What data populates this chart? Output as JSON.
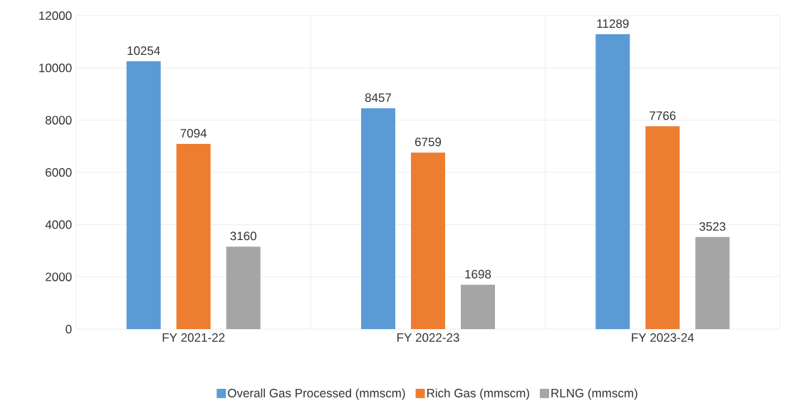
{
  "chart_data": {
    "type": "bar",
    "categories": [
      "FY 2021-22",
      "FY 2022-23",
      "FY 2023-24"
    ],
    "series": [
      {
        "name": "Overall Gas Processed (mmscm)",
        "color": "#5b9bd5",
        "values": [
          10254,
          8457,
          11289
        ]
      },
      {
        "name": "Rich Gas (mmscm)",
        "color": "#ed7d31",
        "values": [
          7094,
          6759,
          7766
        ]
      },
      {
        "name": "RLNG (mmscm)",
        "color": "#a5a5a5",
        "values": [
          3160,
          1698,
          3523
        ]
      }
    ],
    "ylim": [
      0,
      12000
    ],
    "yticks": [
      0,
      2000,
      4000,
      6000,
      8000,
      10000,
      12000
    ],
    "grid": true,
    "legend": "bottom",
    "data_labels": true
  }
}
